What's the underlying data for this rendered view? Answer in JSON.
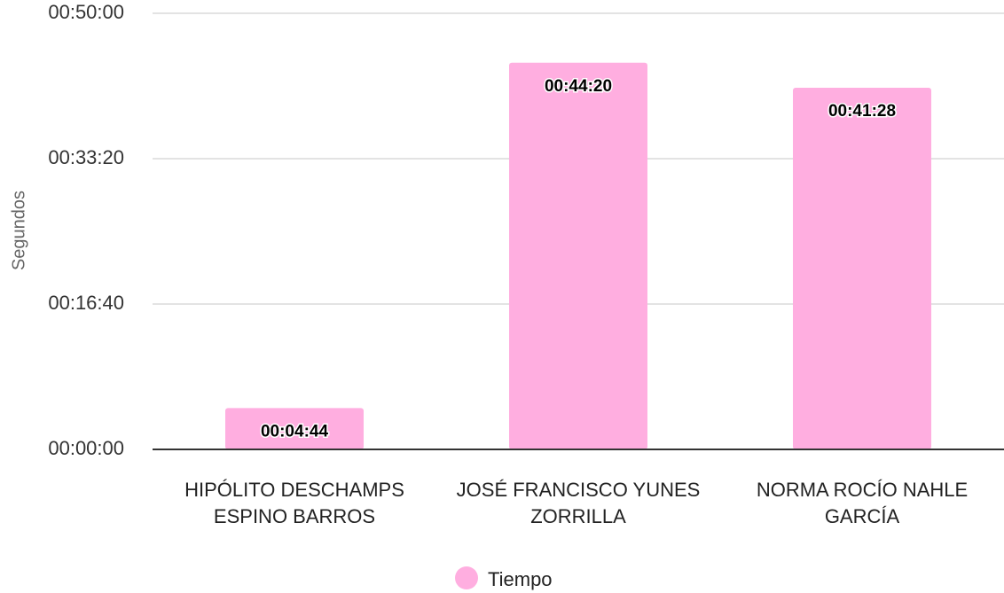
{
  "chart_data": {
    "type": "bar",
    "y_label": "Segundos",
    "categories": [
      "HIPÓLITO DESCHAMPS ESPINO BARROS",
      "JOSÉ FRANCISCO YUNES ZORRILLA",
      "NORMA ROCÍO NAHLE GARCÍA"
    ],
    "series": [
      {
        "name": "Tiempo",
        "color": "#ffaee0",
        "values": [
          284,
          2660,
          2488
        ],
        "value_labels": [
          "00:04:44",
          "00:44:20",
          "00:41:28"
        ]
      }
    ],
    "ylim": [
      0,
      3000
    ],
    "yticks": [
      {
        "value": 0,
        "label": "00:00:00"
      },
      {
        "value": 1000,
        "label": "00:16:40"
      },
      {
        "value": 2000,
        "label": "00:33:20"
      },
      {
        "value": 3000,
        "label": "00:50:00"
      }
    ],
    "grid": true,
    "legend": "bottom"
  }
}
